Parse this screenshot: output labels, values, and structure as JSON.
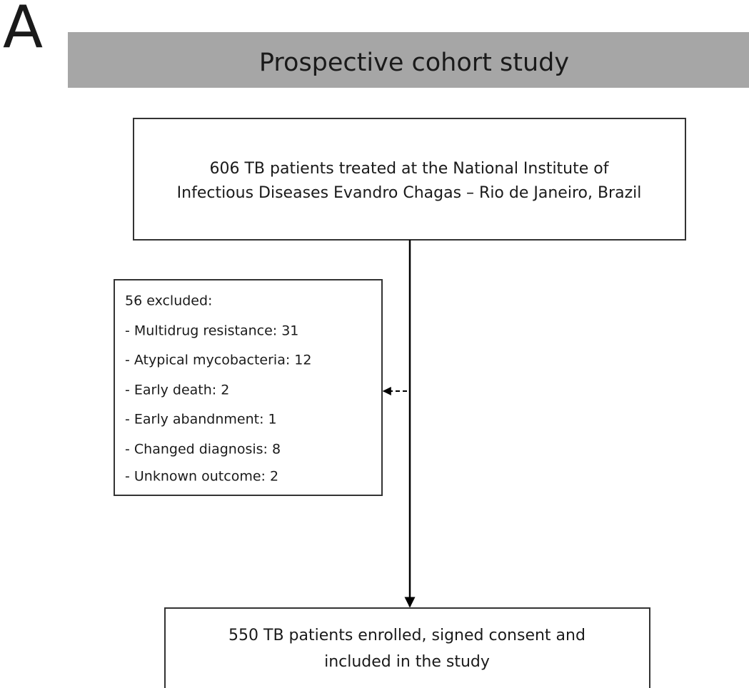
{
  "panel_label": "A",
  "header": {
    "title": "Prospective cohort study"
  },
  "nodes": [
    {
      "lines": [
        "606 TB patients treated at the National Institute of",
        "Infectious Diseases Evandro Chagas – Rio de Janeiro, Brazil"
      ]
    },
    {
      "lines": [
        "56 excluded:",
        "- Multidrug resistance: 31",
        "- Atypical mycobacteria: 12",
        "- Early death: 2",
        "- Early abandnment: 1",
        "-  Changed diagnosis: 8",
        "-  Unknown outcome: 2"
      ]
    },
    {
      "lines": [
        "550 TB patients enrolled, signed consent and",
        "included in the study"
      ]
    }
  ]
}
